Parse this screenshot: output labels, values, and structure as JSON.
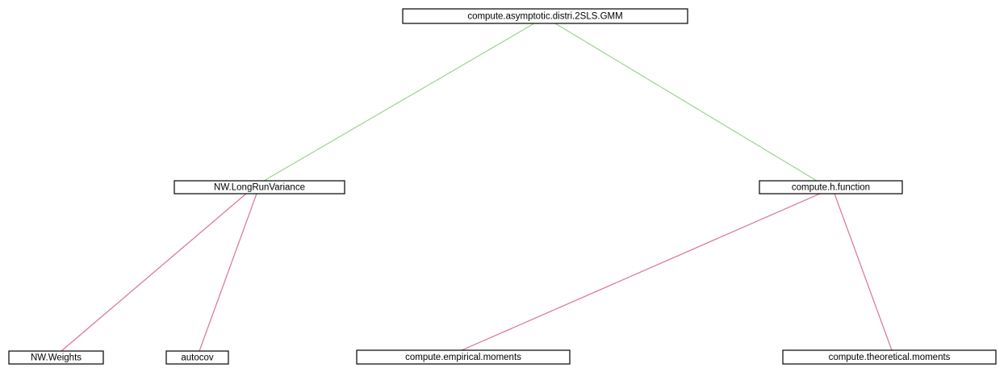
{
  "diagram": {
    "type": "call-graph-tree",
    "colors": {
      "level1_edge": "#99d38c",
      "level2_edge": "#d9738f",
      "node_border": "#000000",
      "background": "#ffffff"
    },
    "nodes": [
      {
        "id": "root",
        "label": "compute.asymptotic.distri.2SLS.GMM"
      },
      {
        "id": "nw_lrv",
        "label": "NW.LongRunVariance"
      },
      {
        "id": "h_fn",
        "label": "compute.h.function"
      },
      {
        "id": "nw_w",
        "label": "NW.Weights"
      },
      {
        "id": "autocov",
        "label": "autocov"
      },
      {
        "id": "emp",
        "label": "compute.empirical.moments"
      },
      {
        "id": "theo",
        "label": "compute.theoretical.moments"
      }
    ],
    "edges": [
      {
        "from": "root",
        "to": "nw_lrv",
        "level": 1
      },
      {
        "from": "root",
        "to": "h_fn",
        "level": 1
      },
      {
        "from": "nw_lrv",
        "to": "nw_w",
        "level": 2
      },
      {
        "from": "nw_lrv",
        "to": "autocov",
        "level": 2
      },
      {
        "from": "h_fn",
        "to": "emp",
        "level": 2
      },
      {
        "from": "h_fn",
        "to": "theo",
        "level": 2
      }
    ]
  }
}
